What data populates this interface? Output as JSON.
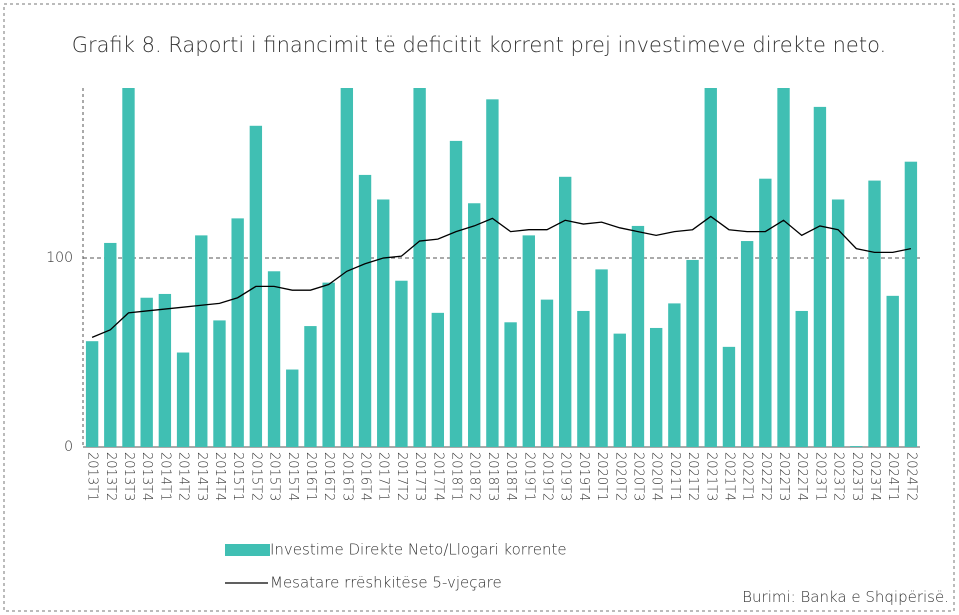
{
  "chart_data": {
    "type": "bar_line",
    "title": "Grafik 8. Raporti i financimit të deficitit korrent prej investimeve direkte neto.",
    "source": "Burimi: Banka e Shqipërisë.",
    "categories": [
      "2013T1",
      "2013T2",
      "2013T3",
      "2013T4",
      "2014T1",
      "2014T2",
      "2014T3",
      "2014T4",
      "2015T1",
      "2015T2",
      "2015T3",
      "2015T4",
      "2016T1",
      "2016T2",
      "2016T3",
      "2016T4",
      "2017T1",
      "2017T2",
      "2017T3",
      "2017T4",
      "2018T1",
      "2018T2",
      "2018T3",
      "2018T4",
      "2019T1",
      "2019T2",
      "2019T3",
      "2019T4",
      "2020T1",
      "2020T2",
      "2020T3",
      "2020T4",
      "2021T1",
      "2021T2",
      "2021T3",
      "2021T4",
      "2022T1",
      "2022T2",
      "2022T3",
      "2022T4",
      "2023T1",
      "2023T2",
      "2023T3",
      "2023T4",
      "2024T1",
      "2024T2"
    ],
    "series": [
      {
        "name": "Investime Direkte Neto/Llogari korrente",
        "type": "bar",
        "color": "#40bfb3",
        "values": [
          56,
          108,
          190,
          79,
          81,
          50,
          112,
          67,
          121,
          170,
          93,
          41,
          64,
          87,
          190,
          144,
          131,
          88,
          190,
          71,
          162,
          129,
          184,
          66,
          112,
          78,
          143,
          72,
          94,
          60,
          117,
          63,
          76,
          99,
          190,
          53,
          109,
          142,
          190,
          72,
          180,
          131,
          0.5,
          141,
          80,
          151
        ]
      },
      {
        "name": "Mesatare rrëshkitëse 5-vjeçare",
        "type": "line",
        "color": "#000000",
        "values": [
          58,
          62,
          71,
          72,
          73,
          74,
          75,
          76,
          79,
          85,
          85,
          83,
          83,
          86,
          93,
          97,
          100,
          101,
          109,
          110,
          114,
          117,
          121,
          114,
          115,
          115,
          120,
          118,
          119,
          116,
          114,
          112,
          114,
          115,
          122,
          115,
          114,
          114,
          120,
          112,
          117,
          115,
          105,
          103,
          103,
          105
        ]
      }
    ],
    "ylim": [
      0,
      190
    ],
    "yticks": [
      0,
      100
    ],
    "grid": true
  }
}
